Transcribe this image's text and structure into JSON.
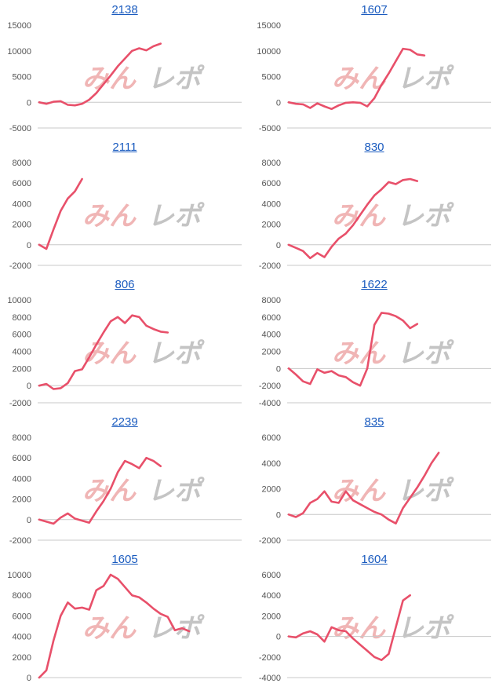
{
  "colors": {
    "series": "#e8506a",
    "title": "#1a5bbf",
    "watermark_a": "#f0b5b5",
    "watermark_b": "#c4c4c4"
  },
  "watermark": {
    "part_a": "みん",
    "part_b": "レポ"
  },
  "chart_data": [
    {
      "type": "line",
      "title": "2138",
      "ylim": [
        -5000,
        15000
      ],
      "yticks": [
        -5000,
        0,
        5000,
        10000,
        15000
      ],
      "values": [
        0,
        -300,
        100,
        200,
        -500,
        -600,
        -300,
        500,
        1800,
        3500,
        5200,
        7000,
        8500,
        10000,
        10500,
        10100,
        10900,
        11400
      ]
    },
    {
      "type": "line",
      "title": "1607",
      "ylim": [
        -5000,
        15000
      ],
      "yticks": [
        -5000,
        0,
        5000,
        10000,
        15000
      ],
      "values": [
        0,
        -300,
        -400,
        -1100,
        -200,
        -800,
        -1300,
        -600,
        -100,
        0,
        -100,
        -800,
        800,
        3400,
        5600,
        8000,
        10400,
        10200,
        9300,
        9100
      ]
    },
    {
      "type": "line",
      "title": "2111",
      "ylim": [
        -2000,
        8000
      ],
      "yticks": [
        -2000,
        0,
        2000,
        4000,
        6000,
        8000
      ],
      "values": [
        0,
        -400,
        1500,
        3300,
        4500,
        5200,
        6400
      ]
    },
    {
      "type": "line",
      "title": "830",
      "ylim": [
        -2000,
        8000
      ],
      "yticks": [
        -2000,
        0,
        2000,
        4000,
        6000,
        8000
      ],
      "values": [
        0,
        -300,
        -600,
        -1300,
        -800,
        -1200,
        -200,
        600,
        1100,
        1900,
        2900,
        3900,
        4800,
        5400,
        6100,
        5900,
        6300,
        6400,
        6200
      ]
    },
    {
      "type": "line",
      "title": "806",
      "ylim": [
        -2000,
        10000
      ],
      "yticks": [
        -2000,
        0,
        2000,
        4000,
        6000,
        8000,
        10000
      ],
      "values": [
        0,
        200,
        -400,
        -300,
        300,
        1700,
        1900,
        3300,
        4800,
        6200,
        7500,
        8000,
        7300,
        8200,
        8000,
        7000,
        6600,
        6300,
        6200
      ]
    },
    {
      "type": "line",
      "title": "1622",
      "ylim": [
        -4000,
        8000
      ],
      "yticks": [
        -4000,
        -2000,
        0,
        2000,
        4000,
        6000,
        8000
      ],
      "values": [
        0,
        -700,
        -1500,
        -1800,
        -100,
        -500,
        -300,
        -800,
        -1000,
        -1600,
        -2000,
        0,
        5100,
        6500,
        6400,
        6100,
        5600,
        4700,
        5200
      ]
    },
    {
      "type": "line",
      "title": "2239",
      "ylim": [
        -2000,
        8000
      ],
      "yticks": [
        -2000,
        0,
        2000,
        4000,
        6000,
        8000
      ],
      "values": [
        0,
        -200,
        -400,
        200,
        600,
        100,
        -100,
        -300,
        800,
        1800,
        3000,
        4600,
        5700,
        5400,
        5000,
        6000,
        5700,
        5200
      ]
    },
    {
      "type": "line",
      "title": "835",
      "ylim": [
        -2000,
        6000
      ],
      "yticks": [
        -2000,
        0,
        2000,
        4000,
        6000
      ],
      "values": [
        0,
        -200,
        100,
        900,
        1200,
        1800,
        1000,
        900,
        1800,
        1100,
        800,
        500,
        200,
        0,
        -400,
        -700,
        500,
        1300,
        2100,
        3000,
        4000,
        4800
      ]
    },
    {
      "type": "line",
      "title": "1605",
      "ylim": [
        0,
        10000
      ],
      "yticks": [
        0,
        2000,
        4000,
        6000,
        8000,
        10000
      ],
      "values": [
        0,
        700,
        3600,
        6000,
        7300,
        6700,
        6800,
        6600,
        8500,
        8900,
        10000,
        9600,
        8800,
        8000,
        7800,
        7300,
        6700,
        6200,
        5900,
        4600,
        4800,
        4500
      ]
    },
    {
      "type": "line",
      "title": "1604",
      "ylim": [
        -4000,
        6000
      ],
      "yticks": [
        -4000,
        -2000,
        0,
        2000,
        4000,
        6000
      ],
      "values": [
        0,
        -100,
        300,
        500,
        200,
        -500,
        900,
        600,
        500,
        -200,
        -800,
        -1400,
        -2000,
        -2300,
        -1700,
        900,
        3500,
        4000
      ]
    }
  ]
}
